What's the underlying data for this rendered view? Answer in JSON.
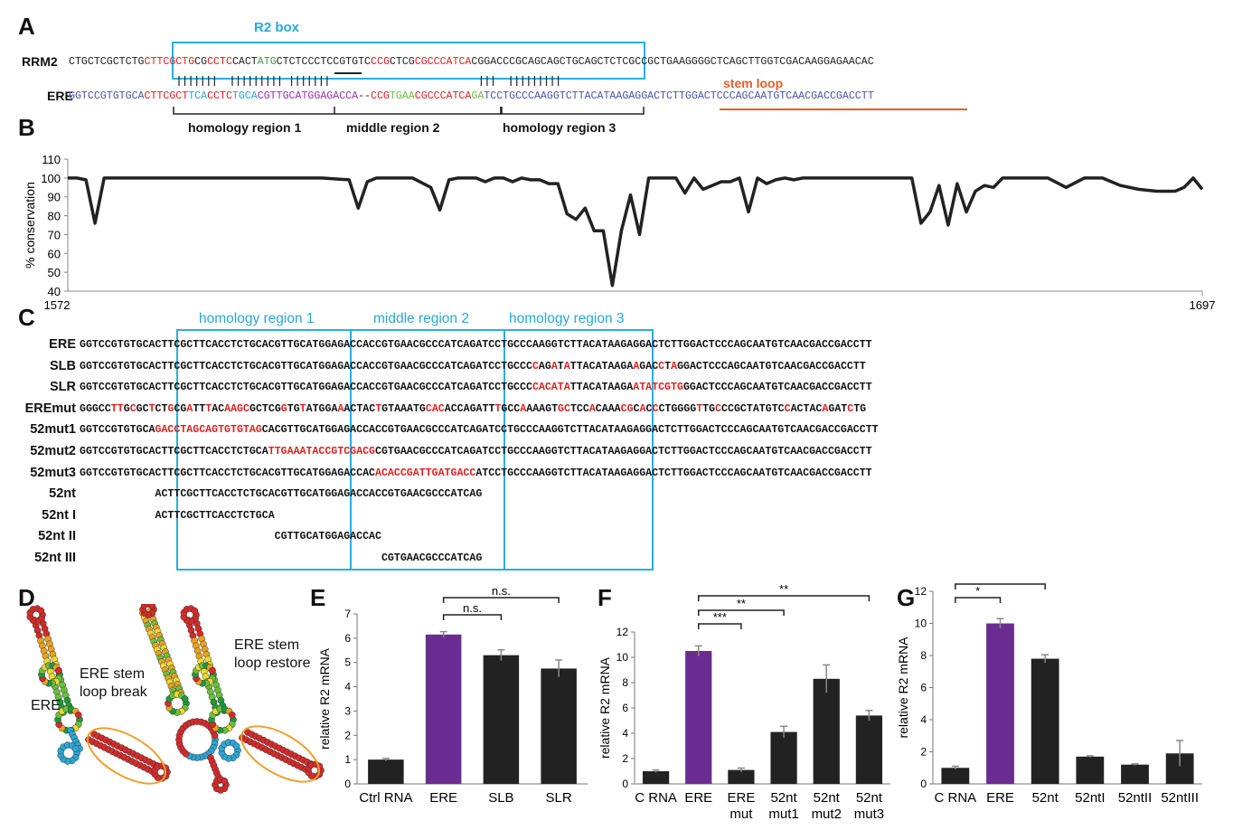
{
  "panels": {
    "A": "A",
    "B": "B",
    "C": "C",
    "D": "D",
    "E": "E",
    "F": "F",
    "G": "G"
  },
  "panelA": {
    "r2box_label": "R2 box",
    "rrm2_label": "RRM2",
    "ere_label": "ERE",
    "rrm2_seq": [
      {
        "t": "CTGCTCGCTCTG",
        "c": "#222"
      },
      {
        "t": "CTTCGCTG",
        "c": "#e02020"
      },
      {
        "t": "CG",
        "c": "#222"
      },
      {
        "t": "CCTC",
        "c": "#e02020"
      },
      {
        "t": "CACT",
        "c": "#222"
      },
      {
        "t": "ATG",
        "c": "#3aa040"
      },
      {
        "t": "CTCTCCCTCCGTGTC",
        "c": "#222"
      },
      {
        "t": "CCG",
        "c": "#e02020"
      },
      {
        "t": "CTCG",
        "c": "#222"
      },
      {
        "t": "CGCCCATCA",
        "c": "#e02020"
      },
      {
        "t": "CGGACCCGCAGCAGCTGCAGCTCTCGCCGCTGAAGGGGCTCAGCTTGGTCGACAAGGAGAACAC",
        "c": "#222"
      }
    ],
    "ere_seq": [
      {
        "t": "GGTCCGTGTGCA",
        "c": "#4a52b0"
      },
      {
        "t": "CTTCGCT",
        "c": "#e02020"
      },
      {
        "t": "TCA",
        "c": "#29a8d8"
      },
      {
        "t": "CCTC",
        "c": "#e02020"
      },
      {
        "t": "TGCA",
        "c": "#29a8d8"
      },
      {
        "t": "CGTTGCATGGAGACCA",
        "c": "#9a2fb0"
      },
      {
        "t": "--",
        "c": "#222"
      },
      {
        "t": "CCG",
        "c": "#e02020"
      },
      {
        "t": "TGAA",
        "c": "#6cbc45"
      },
      {
        "t": "CGCCCATCA",
        "c": "#e02020"
      },
      {
        "t": "GA",
        "c": "#6cbc45"
      },
      {
        "t": "TCCTGCC",
        "c": "#4a52b0"
      },
      {
        "t": "CAAGGTCTTACATAAGAGGACTCTTGG",
        "c": "#4a52b0"
      },
      {
        "t": "ACTCCCAGCAATGTCAACGACCGACCTT",
        "c": "#4a52b0"
      }
    ],
    "stem_loop_label": "stem loop",
    "region_labels": [
      "homology region 1",
      "middle region 2",
      "homology region 3"
    ]
  },
  "panelB": {
    "ylabel": "% conservation",
    "yticks": [
      "110",
      "100",
      "90",
      "80",
      "70",
      "60",
      "50",
      "40"
    ],
    "x_start": "1572",
    "x_end": "1697"
  },
  "chart_data": [
    {
      "type": "line",
      "title": "",
      "xlabel": "",
      "ylabel": "% conservation",
      "xlim": [
        1572,
        1697
      ],
      "ylim": [
        40,
        110
      ],
      "x": [
        1572,
        1573,
        1574,
        1575,
        1576,
        1577,
        1580,
        1585,
        1590,
        1595,
        1600,
        1603,
        1604,
        1605,
        1606,
        1610,
        1612,
        1613,
        1614,
        1615,
        1617,
        1618,
        1619,
        1620,
        1621,
        1622,
        1623,
        1624,
        1625,
        1626,
        1627,
        1628,
        1629,
        1630,
        1631,
        1632,
        1633,
        1634,
        1635,
        1636,
        1637,
        1638,
        1639,
        1640,
        1641,
        1642,
        1643,
        1644,
        1645,
        1646,
        1647,
        1648,
        1649,
        1650,
        1651,
        1652,
        1653,
        1655,
        1660,
        1665,
        1666,
        1667,
        1668,
        1669,
        1670,
        1671,
        1672,
        1673,
        1674,
        1675,
        1676,
        1677,
        1680,
        1682,
        1684,
        1686,
        1688,
        1690,
        1692,
        1694,
        1695,
        1696,
        1697
      ],
      "values": [
        100,
        100,
        99,
        76,
        100,
        100,
        100,
        100,
        100,
        100,
        100,
        99,
        84,
        98,
        100,
        100,
        95,
        83,
        99,
        100,
        100,
        98,
        100,
        100,
        98,
        100,
        99,
        99,
        97,
        97,
        81,
        78,
        84,
        72,
        72,
        43,
        72,
        91,
        70,
        100,
        100,
        100,
        100,
        92,
        100,
        94,
        96,
        98,
        98,
        100,
        82,
        100,
        97,
        99,
        100,
        99,
        100,
        100,
        100,
        100,
        76,
        82,
        96,
        75,
        97,
        82,
        93,
        96,
        95,
        100,
        100,
        100,
        100,
        95,
        100,
        100,
        96,
        94,
        93,
        93,
        95,
        100,
        94
      ],
      "grid": false
    },
    {
      "type": "bar",
      "title": "E",
      "ylabel": "relative R2 mRNA",
      "categories": [
        "Ctrl RNA",
        "ERE",
        "SLB",
        "SLR"
      ],
      "values": [
        1.0,
        6.15,
        5.3,
        4.75
      ],
      "errors": [
        0.05,
        0.12,
        0.22,
        0.35
      ],
      "ylim": [
        0,
        7
      ],
      "yticks": [
        "0",
        "1",
        "2",
        "3",
        "4",
        "5",
        "6",
        "7"
      ],
      "significance": [
        {
          "pair": [
            "ERE",
            "SLB"
          ],
          "label": "n.s."
        },
        {
          "pair": [
            "ERE",
            "SLR"
          ],
          "label": "n.s."
        }
      ]
    },
    {
      "type": "bar",
      "title": "F",
      "ylabel": "relative R2 mRNA",
      "categories": [
        "C RNA",
        "ERE",
        "ERE mut",
        "52nt mut1",
        "52nt mut2",
        "52nt mut3"
      ],
      "values": [
        1.0,
        10.5,
        1.1,
        4.1,
        8.3,
        5.4
      ],
      "errors": [
        0.1,
        0.4,
        0.15,
        0.45,
        1.1,
        0.4
      ],
      "ylim": [
        0,
        12
      ],
      "yticks": [
        "0",
        "2",
        "4",
        "6",
        "8",
        "10",
        "12"
      ],
      "significance": [
        {
          "pair": [
            "ERE",
            "ERE mut"
          ],
          "label": "***"
        },
        {
          "pair": [
            "ERE",
            "52nt mut1"
          ],
          "label": "**"
        },
        {
          "pair": [
            "ERE",
            "52nt mut3"
          ],
          "label": "**"
        }
      ]
    },
    {
      "type": "bar",
      "title": "G",
      "ylabel": "relative R2 mRNA",
      "categories": [
        "C RNA",
        "ERE",
        "52nt",
        "52ntI",
        "52ntII",
        "52ntIII"
      ],
      "values": [
        1.0,
        10.0,
        7.8,
        1.7,
        1.2,
        1.9
      ],
      "errors": [
        0.1,
        0.3,
        0.25,
        0.05,
        0.05,
        0.8
      ],
      "ylim": [
        0,
        12
      ],
      "yticks": [
        "0",
        "2",
        "4",
        "6",
        "8",
        "10",
        "12"
      ],
      "significance": [
        {
          "pair": [
            "C RNA",
            "ERE"
          ],
          "label": "*"
        },
        {
          "pair": [
            "C RNA",
            "52nt"
          ],
          "label": "*"
        }
      ]
    }
  ],
  "panelC": {
    "box_labels": [
      "homology region 1",
      "middle region 2",
      "homology region 3"
    ],
    "rows": [
      {
        "label": "ERE",
        "seq": [
          {
            "t": "GGTCCGTGTGCACTTCGCTTCACCTCTGCACGTTGCATGGAGACCACCGTGAACGCCCATCAGATCCTGCCCAAGGTCTTACATAAGAGGACTCTTGGACTCCCAGCAATGTCAACGACCGACCTT",
            "c": "#111"
          }
        ]
      },
      {
        "label": "SLB",
        "seq": [
          {
            "t": "GGTCCGTGTGCACTTCGCTTCACCTCTGCACGTTGCATGGAGACCACCGTGAACGCCCATCAGATCCTGCCC",
            "c": "#111"
          },
          {
            "t": "C",
            "c": "#e02020"
          },
          {
            "t": "AG",
            "c": "#111"
          },
          {
            "t": "A",
            "c": "#e02020"
          },
          {
            "t": "T",
            "c": "#111"
          },
          {
            "t": "A",
            "c": "#e02020"
          },
          {
            "t": "TTACATAAGA",
            "c": "#111"
          },
          {
            "t": "A",
            "c": "#e02020"
          },
          {
            "t": "GAC",
            "c": "#111"
          },
          {
            "t": "C",
            "c": "#e02020"
          },
          {
            "t": "T",
            "c": "#111"
          },
          {
            "t": "A",
            "c": "#e02020"
          },
          {
            "t": "GGACTCCCAGCAATGTCAACGACCGACCTT",
            "c": "#111"
          }
        ]
      },
      {
        "label": "SLR",
        "seq": [
          {
            "t": "GGTCCGTGTGCACTTCGCTTCACCTCTGCACGTTGCATGGAGACCACCGTGAACGCCCATCAGATCCTGCCC",
            "c": "#111"
          },
          {
            "t": "CACATA",
            "c": "#e02020"
          },
          {
            "t": "TTACATAAGA",
            "c": "#111"
          },
          {
            "t": "ATATCGTG",
            "c": "#e02020"
          },
          {
            "t": "GGACTCCCAGCAATGTCAACGACCGACCTT",
            "c": "#111"
          }
        ]
      },
      {
        "label": "EREmut",
        "seq": [
          {
            "t": "GGGCC",
            "c": "#111"
          },
          {
            "t": "TT",
            "c": "#e02020"
          },
          {
            "t": "G",
            "c": "#111"
          },
          {
            "t": "C",
            "c": "#e02020"
          },
          {
            "t": "GC",
            "c": "#111"
          },
          {
            "t": "T",
            "c": "#e02020"
          },
          {
            "t": "CT",
            "c": "#111"
          },
          {
            "t": "G",
            "c": "#e02020"
          },
          {
            "t": "CG",
            "c": "#111"
          },
          {
            "t": "A",
            "c": "#e02020"
          },
          {
            "t": "TT",
            "c": "#111"
          },
          {
            "t": "T",
            "c": "#e02020"
          },
          {
            "t": "AC",
            "c": "#111"
          },
          {
            "t": "AAGC",
            "c": "#e02020"
          },
          {
            "t": "GCT",
            "c": "#111"
          },
          {
            "t": "CG",
            "c": "#111"
          },
          {
            "t": "G",
            "c": "#e02020"
          },
          {
            "t": "TG",
            "c": "#111"
          },
          {
            "t": "T",
            "c": "#e02020"
          },
          {
            "t": "ATGGA",
            "c": "#111"
          },
          {
            "t": "A",
            "c": "#e02020"
          },
          {
            "t": "ACTAC",
            "c": "#111"
          },
          {
            "t": "T",
            "c": "#e02020"
          },
          {
            "t": "GTAAATG",
            "c": "#111"
          },
          {
            "t": "CAC",
            "c": "#e02020"
          },
          {
            "t": "ACCAG",
            "c": "#111"
          },
          {
            "t": "ATT",
            "c": "#111"
          },
          {
            "t": "T",
            "c": "#e02020"
          },
          {
            "t": "GCC",
            "c": "#111"
          },
          {
            "t": "A",
            "c": "#e02020"
          },
          {
            "t": "AAAGT",
            "c": "#111"
          },
          {
            "t": "GC",
            "c": "#e02020"
          },
          {
            "t": "TCC",
            "c": "#111"
          },
          {
            "t": "A",
            "c": "#e02020"
          },
          {
            "t": "CAAA",
            "c": "#111"
          },
          {
            "t": "CG",
            "c": "#e02020"
          },
          {
            "t": "C",
            "c": "#111"
          },
          {
            "t": "A",
            "c": "#e02020"
          },
          {
            "t": "C",
            "c": "#111"
          },
          {
            "t": "C",
            "c": "#e02020"
          },
          {
            "t": "CTGGGG",
            "c": "#111"
          },
          {
            "t": "T",
            "c": "#e02020"
          },
          {
            "t": "TG",
            "c": "#111"
          },
          {
            "t": "C",
            "c": "#e02020"
          },
          {
            "t": "CCGCTATGTC",
            "c": "#111"
          },
          {
            "t": "C",
            "c": "#e02020"
          },
          {
            "t": "ACTAC",
            "c": "#111"
          },
          {
            "t": "A",
            "c": "#e02020"
          },
          {
            "t": "GAT",
            "c": "#111"
          },
          {
            "t": "C",
            "c": "#e02020"
          },
          {
            "t": "TG",
            "c": "#111"
          }
        ]
      },
      {
        "label": "52mut1",
        "seq": [
          {
            "t": "GGTCCGTGTGCA",
            "c": "#111"
          },
          {
            "t": "GACCTAGCAGTGTGTAG",
            "c": "#e02020"
          },
          {
            "t": "CACGTTGCATGGAGACCACCGTGAACGCCCATCAGATCCTGCCCAAGGTCTTACATAAGAGGACTCTTGGACTCCCAGCAATGTCAACGACCGACCTT",
            "c": "#111"
          }
        ]
      },
      {
        "label": "52mut2",
        "seq": [
          {
            "t": "GGTCCGTGTGCACTTCGCTTCACCTCTGCA",
            "c": "#111"
          },
          {
            "t": "TTGAAATACCGTCGACG",
            "c": "#e02020"
          },
          {
            "t": "CGTGAACGCCCATCAGATCCTGCCCAAGGTCTTACATAAGAGGACTCTTGGACTCCCAGCAATGTCAACGACCGACCTT",
            "c": "#111"
          }
        ]
      },
      {
        "label": "52mut3",
        "seq": [
          {
            "t": "GGTCCGTGTGCACTTCGCTTCACCTCTGCACGTTGCATGGAGACCAC",
            "c": "#111"
          },
          {
            "t": "ACACCGATTGATGACC",
            "c": "#e02020"
          },
          {
            "t": "ATCCTGCCCAAGGTCTTACATAAGAGGACTCTTGGACTCCCAGCAATGTCAACGACCGACCTT",
            "c": "#111"
          }
        ]
      },
      {
        "label": "52nt",
        "seq": [
          {
            "t": "            ACTTCGCTTCACCTCTGCACGTTGCATGGAGACCACCGTGAACGCCCATCAG",
            "c": "#111"
          }
        ]
      },
      {
        "label": "52nt I",
        "seq": [
          {
            "t": "            ACTTCGCTTCACCTCTGCA",
            "c": "#111"
          }
        ]
      },
      {
        "label": "52nt II",
        "seq": [
          {
            "t": "                               CGTTGCATGGAGACCAC",
            "c": "#111"
          }
        ]
      },
      {
        "label": "52nt III",
        "seq": [
          {
            "t": "                                                CGTGAACGCCCATCAG",
            "c": "#111"
          }
        ]
      }
    ]
  },
  "panelD": {
    "labels": [
      "ERE",
      "ERE stem\nloop break",
      "ERE stem\nloop restore"
    ]
  },
  "colors": {
    "bar_dark": "#222222",
    "bar_purple": "#6a2c91",
    "cyan": "#2aaee0",
    "red": "#e02020",
    "orange": "#e85a2a"
  }
}
